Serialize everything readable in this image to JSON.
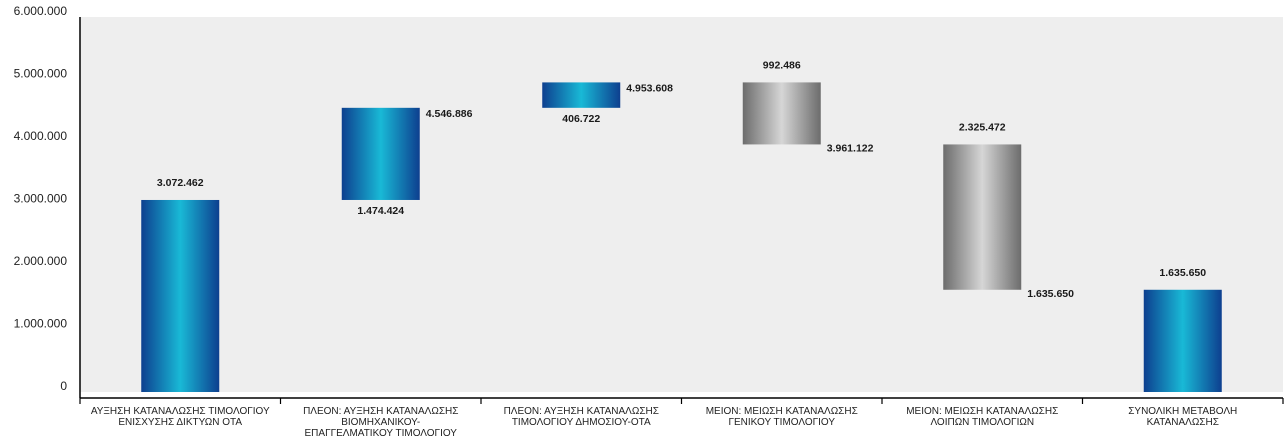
{
  "chart_data": {
    "type": "waterfall",
    "ylim": [
      0,
      6000000
    ],
    "yticks": [
      {
        "value": 0,
        "label": "0"
      },
      {
        "value": 1000000,
        "label": "1.000.000"
      },
      {
        "value": 2000000,
        "label": "2.000.000"
      },
      {
        "value": 3000000,
        "label": "3.000.000"
      },
      {
        "value": 4000000,
        "label": "4.000.000"
      },
      {
        "value": 5000000,
        "label": "5.000.000"
      },
      {
        "value": 6000000,
        "label": "6.000.000"
      }
    ],
    "grid": false,
    "categories": [
      {
        "lines": [
          "ΑΥΞΗΣΗ ΚΑΤΑΝΑΛΩΣΗΣ ΤΙΜΟΛΟΓΙΟΥ",
          "ΕΝΙΣΧΥΣΗΣ ΔΙΚΤΥΩΝ ΟΤΑ"
        ]
      },
      {
        "lines": [
          "ΠΛΕΟΝ: ΑΥΞΗΣΗ ΚΑΤΑΝΑΛΩΣΗΣ",
          "ΒΙΟΜΗΧΑΝΙΚΟΥ-",
          "ΕΠΑΓΓΕΛΜΑΤΙΚΟΥ ΤΙΜΟΛΟΓΙΟΥ"
        ]
      },
      {
        "lines": [
          "ΠΛΕΟΝ: ΑΥΞΗΣΗ ΚΑΤΑΝΑΛΩΣΗΣ",
          "ΤΙΜΟΛΟΓΙΟΥ ΔΗΜΟΣΙΟΥ-ΟΤΑ"
        ]
      },
      {
        "lines": [
          "ΜΕΙΟΝ: ΜΕΙΩΣΗ ΚΑΤΑΝΑΛΩΣΗΣ",
          "ΓΕΝΙΚΟΥ ΤΙΜΟΛΟΓΙΟΥ"
        ]
      },
      {
        "lines": [
          "ΜΕΙΟΝ: ΜΕΙΩΣΗ ΚΑΤΑΝΑΛΩΣΗΣ",
          "ΛΟΙΠΩΝ ΤΙΜΟΛΟΓΙΩΝ"
        ]
      },
      {
        "lines": [
          "ΣΥΝΟΛΙΚΗ ΜΕΤΑΒΟΛΗ",
          "ΚΑΤΑΝΑΛΩΣΗΣ"
        ]
      }
    ],
    "bars": [
      {
        "base": 0,
        "top": 3072462,
        "kind": "increase",
        "labels": [
          {
            "text": "3.072.462",
            "at": "above"
          }
        ]
      },
      {
        "base": 3072462,
        "top": 4546886,
        "kind": "increase",
        "labels": [
          {
            "text": "4.546.886",
            "at": "top-right"
          },
          {
            "text": "1.474.424",
            "at": "below"
          }
        ]
      },
      {
        "base": 4546886,
        "top": 4953608,
        "kind": "increase",
        "labels": [
          {
            "text": "4.953.608",
            "at": "top-right"
          },
          {
            "text": "406.722",
            "at": "below"
          }
        ]
      },
      {
        "base": 3961122,
        "top": 4953608,
        "kind": "decrease",
        "labels": [
          {
            "text": "992.486",
            "at": "above"
          },
          {
            "text": "3.961.122",
            "at": "bottom-right"
          }
        ]
      },
      {
        "base": 1635650,
        "top": 3961122,
        "kind": "decrease",
        "labels": [
          {
            "text": "2.325.472",
            "at": "above"
          },
          {
            "text": "1.635.650",
            "at": "bottom-right"
          }
        ]
      },
      {
        "base": 0,
        "top": 1635650,
        "kind": "total",
        "labels": [
          {
            "text": "1.635.650",
            "at": "above"
          }
        ]
      }
    ],
    "colors": {
      "increase_dark": "#0d3f8f",
      "increase_light": "#19b9d6",
      "decrease_dark": "#6c6c6c",
      "decrease_light": "#d6d6d6",
      "plot_background": "#eeeeee"
    }
  }
}
